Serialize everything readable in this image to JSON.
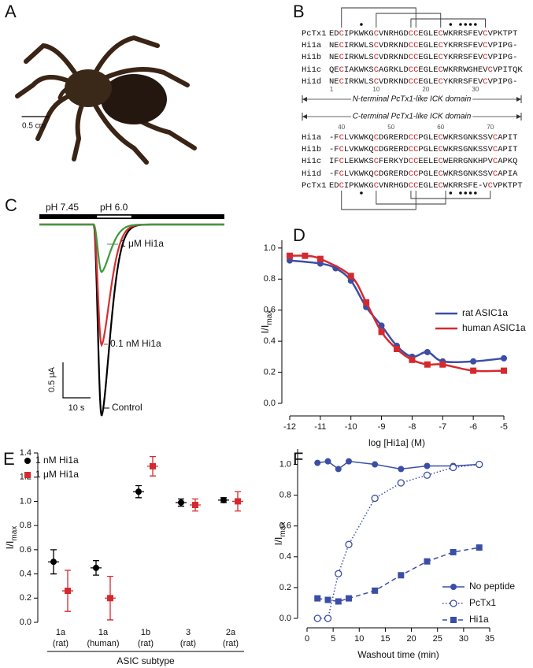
{
  "panel_labels": [
    "A",
    "B",
    "C",
    "D",
    "E",
    "F"
  ],
  "photo": {
    "scale_bar": "0.5 cm"
  },
  "alignment": {
    "n_terminal": {
      "label": "N-terminal PcTx1-like ICK domain",
      "positions": [
        1,
        10,
        20,
        30
      ],
      "rows": [
        {
          "name": "PcTx1",
          "sequence": "EDCIPKWKGCVNRHGDCCEGLECWKRRSFEVCVPKTPT"
        },
        {
          "name": "Hi1a",
          "sequence": "NECIRKWLSCVDRKNDCCEGLECYKRRSFEVCVPIPG-"
        },
        {
          "name": "Hi1b",
          "sequence": "NECIRKWLSCVDRKNDCCEGLECYKRRSFEVCVPIPG-"
        },
        {
          "name": "Hi1c",
          "sequence": "QECIAKWKSCAGRKLDCCEGLECWKRRWGHEVCVPITQK"
        },
        {
          "name": "Hi1d",
          "sequence": "NECIRKWLSCVDRKNDCCEGLECYKRRSFEVCVPIPG-"
        }
      ]
    },
    "c_terminal": {
      "label": "C-terminal PcTx1-like ICK domain",
      "positions": [
        40,
        50,
        60,
        70
      ],
      "rows": [
        {
          "name": "Hi1a",
          "sequence": "-FCLVKWKQCDGRERDCCPGLECWKRSGNKSSVCAPIT"
        },
        {
          "name": "Hi1b",
          "sequence": "-FCLVKWKQCDGRERDCCPGLECWKRSGNKSSVCAPIT"
        },
        {
          "name": "Hi1c",
          "sequence": "IFCLEKWKSCFERKYDCCEELECWERRGNKHPVCAPKQ"
        },
        {
          "name": "Hi1d",
          "sequence": "-FCLVKWKQCDGRERDCCPGLECWKRSGNKSSVCAPIA"
        },
        {
          "name": "PcTx1",
          "sequence": "EDCIPKWKGCVNRHGDCCEGLECWKRRSFE-VCVPKTPT"
        }
      ]
    }
  },
  "chart_data": [
    {
      "type": "trace",
      "solution_labels": [
        "pH 7.45",
        "pH 6.0"
      ],
      "scale_bar_labels": [
        "0.5 μA",
        "10 s"
      ],
      "series": [
        {
          "name": "Control",
          "color": "#000000",
          "values": [
            2.7
          ]
        },
        {
          "name": "0.1 nM Hi1a",
          "color": "#d62d2f",
          "values": [
            1.7
          ]
        },
        {
          "name": "1 μM Hi1a",
          "color": "#3d9a3d",
          "values": [
            0.67
          ]
        }
      ]
    },
    {
      "type": "line",
      "x_label": "log [Hi1a] (M)",
      "y_label": "I/I",
      "y_label_subscript": "max",
      "xlim": [
        -12,
        -5
      ],
      "xticks": [
        -12,
        -11,
        -10,
        -9,
        -8,
        -7,
        -6,
        -5
      ],
      "ylim": [
        0,
        1.05
      ],
      "yticks": [
        {
          "value": 0,
          "label": "0.0"
        },
        0.2,
        0.4,
        0.6,
        0.8,
        {
          "value": 1,
          "label": "1.0"
        }
      ],
      "series": [
        {
          "name": "rat ASIC1a",
          "color": "#3b4ea5",
          "marker": "circle",
          "x": [
            -12,
            -11,
            -10.5,
            -10,
            -9.5,
            -9,
            -8.5,
            -8,
            -7.5,
            -7,
            -6,
            -5
          ],
          "values": [
            0.92,
            0.9,
            0.87,
            0.79,
            0.62,
            0.5,
            0.37,
            0.3,
            0.33,
            0.27,
            0.27,
            0.29
          ]
        },
        {
          "name": "human ASIC1a",
          "color": "#d42a2f",
          "marker": "square",
          "x": [
            -12,
            -11.5,
            -11,
            -10,
            -9.5,
            -9,
            -8.5,
            -8,
            -7.5,
            -7,
            -6,
            -5
          ],
          "values": [
            0.95,
            0.95,
            0.93,
            0.82,
            0.65,
            0.46,
            0.35,
            0.28,
            0.25,
            0.25,
            0.21,
            0.21
          ]
        }
      ]
    },
    {
      "type": "dot",
      "x_label": "ASIC subtype",
      "y_label": "I/I",
      "y_label_subscript": "max",
      "categories": [
        "1a",
        "1a",
        "1b",
        "3",
        "2a"
      ],
      "category_notes": [
        "(rat)",
        "(human)",
        "(rat)",
        "(rat)",
        "(rat)"
      ],
      "ylim": [
        0,
        1.4
      ],
      "yticks": [
        {
          "value": 0,
          "label": "0.0"
        },
        0.2,
        0.4,
        0.6,
        0.8,
        {
          "value": 1,
          "label": "1.0"
        },
        1.2,
        1.4
      ],
      "series": [
        {
          "name": "1 nM Hi1a",
          "color": "#000000",
          "marker": "circle",
          "values": [
            0.5,
            0.45,
            1.08,
            0.99,
            1.01
          ],
          "errors": [
            0.1,
            0.06,
            0.05,
            0.03,
            0.02
          ]
        },
        {
          "name": "1 μM Hi1a",
          "color": "#d42a2f",
          "marker": "square",
          "values": [
            0.26,
            0.2,
            1.29,
            0.97,
            1.0
          ],
          "errors": [
            0.17,
            0.18,
            0.08,
            0.05,
            0.08
          ]
        }
      ]
    },
    {
      "type": "line",
      "x_label": "Washout time (min)",
      "y_label": "I/I",
      "y_label_subscript": "max",
      "x": [
        2,
        4,
        6,
        8,
        13,
        18,
        23,
        28,
        33
      ],
      "xlim": [
        0,
        35
      ],
      "xticks": [
        0,
        5,
        10,
        15,
        20,
        25,
        30,
        35
      ],
      "ylim": [
        0,
        1.1
      ],
      "yticks": [
        {
          "value": 0,
          "label": "0.0"
        },
        0.2,
        0.4,
        0.6,
        0.8,
        {
          "value": 1,
          "label": "1.0"
        }
      ],
      "series": [
        {
          "name": "No peptide",
          "color": "#3b4ea5",
          "marker": "circle",
          "line": "solid",
          "values": [
            1.01,
            1.02,
            0.97,
            1.02,
            1.0,
            0.97,
            0.99,
            0.99,
            1.0
          ]
        },
        {
          "name": "PcTx1",
          "color": "#3b4ea5",
          "marker": "open-circle",
          "line": "dotted",
          "values": [
            0.0,
            0.0,
            0.29,
            0.48,
            0.78,
            0.88,
            0.93,
            0.98,
            1.0
          ]
        },
        {
          "name": "Hi1a",
          "color": "#3b4ea5",
          "marker": "square",
          "line": "dashed",
          "values": [
            0.13,
            0.12,
            0.11,
            0.13,
            0.18,
            0.28,
            0.37,
            0.43,
            0.46
          ]
        }
      ]
    }
  ]
}
